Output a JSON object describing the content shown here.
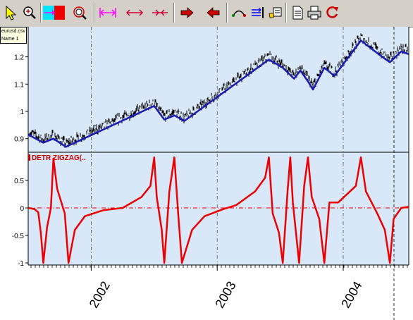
{
  "toolbar": {
    "buttons": [
      {
        "name": "pointer-icon"
      },
      {
        "name": "zoom-in-icon"
      },
      {
        "name": "color-select-icon"
      },
      {
        "name": "zoom-target-icon"
      },
      {
        "name": "expand-range-icon"
      },
      {
        "name": "stretch-horizontal-icon"
      },
      {
        "name": "compress-horizontal-icon"
      },
      {
        "name": "arrow-right-icon"
      },
      {
        "name": "arrow-left-icon"
      },
      {
        "name": "overlay-arc-icon"
      },
      {
        "name": "align-right-icon"
      },
      {
        "name": "hand-chart-icon"
      },
      {
        "name": "document-icon"
      },
      {
        "name": "print-icon"
      },
      {
        "name": "refresh-icon"
      }
    ]
  },
  "legend": {
    "line1": "eurusd.csv",
    "line2": "Name 1"
  },
  "indicator": {
    "label": "DETR ZIGZAG(.."
  },
  "colors": {
    "plot_bg": "#d8e8f8",
    "price": "#000000",
    "zigzag": "#1a1ab4",
    "indicator": "#ee0000",
    "indicator_dark": "#8b0000"
  },
  "chart_data": [
    {
      "type": "line",
      "series": [
        {
          "name": "",
          "values": [
            [
              2001.5,
              0.915
            ],
            [
              2001.62,
              0.885
            ],
            [
              2001.7,
              0.9
            ],
            [
              2001.8,
              0.87
            ],
            [
              2002.5,
              1.02
            ],
            [
              2002.58,
              0.97
            ],
            [
              2002.66,
              0.985
            ],
            [
              2002.74,
              0.965
            ],
            [
              2003.41,
              1.19
            ],
            [
              2003.52,
              1.16
            ],
            [
              2003.61,
              1.12
            ],
            [
              2003.66,
              1.15
            ],
            [
              2003.72,
              1.11
            ],
            [
              2003.76,
              1.08
            ],
            [
              2003.85,
              1.16
            ],
            [
              2003.93,
              1.13
            ],
            [
              2004.14,
              1.26
            ],
            [
              2004.28,
              1.21
            ],
            [
              2004.37,
              1.18
            ],
            [
              2004.46,
              1.22
            ],
            [
              2004.52,
              1.21
            ]
          ]
        }
      ],
      "ylim": [
        0.85,
        1.3
      ],
      "yticks": [
        "1.2",
        "1.1",
        "1",
        "0.9"
      ],
      "grid": true
    },
    {
      "type": "line",
      "series": [
        {
          "name": "DETR ZIGZAG(..",
          "values": [
            [
              2001.5,
              0.0
            ],
            [
              2001.55,
              -0.02
            ],
            [
              2001.58,
              -0.08
            ],
            [
              2001.6,
              -0.45
            ],
            [
              2001.62,
              -1.0
            ],
            [
              2001.65,
              -0.35
            ],
            [
              2001.68,
              0.0
            ],
            [
              2001.7,
              0.9
            ],
            [
              2001.73,
              0.35
            ],
            [
              2001.77,
              0.05
            ],
            [
              2001.79,
              -0.1
            ],
            [
              2001.82,
              -1.0
            ],
            [
              2001.87,
              -0.4
            ],
            [
              2001.95,
              -0.15
            ],
            [
              2002.1,
              -0.04
            ],
            [
              2002.25,
              0.0
            ],
            [
              2002.4,
              0.2
            ],
            [
              2002.47,
              0.4
            ],
            [
              2002.5,
              0.92
            ],
            [
              2002.52,
              0.2
            ],
            [
              2002.56,
              -0.4
            ],
            [
              2002.58,
              -1.0
            ],
            [
              2002.62,
              0.3
            ],
            [
              2002.66,
              0.92
            ],
            [
              2002.69,
              -0.1
            ],
            [
              2002.72,
              -1.0
            ],
            [
              2002.8,
              -0.4
            ],
            [
              2002.9,
              -0.15
            ],
            [
              2003.05,
              -0.02
            ],
            [
              2003.15,
              0.05
            ],
            [
              2003.3,
              0.3
            ],
            [
              2003.38,
              0.55
            ],
            [
              2003.41,
              0.92
            ],
            [
              2003.44,
              -0.1
            ],
            [
              2003.49,
              -0.45
            ],
            [
              2003.52,
              -1.0
            ],
            [
              2003.56,
              0.35
            ],
            [
              2003.58,
              0.92
            ],
            [
              2003.6,
              0.1
            ],
            [
              2003.65,
              -1.0
            ],
            [
              2003.69,
              0.4
            ],
            [
              2003.72,
              0.92
            ],
            [
              2003.75,
              0.2
            ],
            [
              2003.81,
              -0.2
            ],
            [
              2003.85,
              -1.0
            ],
            [
              2003.89,
              0.1
            ],
            [
              2003.96,
              0.1
            ],
            [
              2004.1,
              0.4
            ],
            [
              2004.14,
              0.92
            ],
            [
              2004.18,
              0.3
            ],
            [
              2004.27,
              -0.1
            ],
            [
              2004.33,
              -0.4
            ],
            [
              2004.37,
              -1.0
            ],
            [
              2004.4,
              -0.2
            ],
            [
              2004.46,
              0.0
            ],
            [
              2004.52,
              0.02
            ]
          ]
        }
      ],
      "ylim": [
        -1.0,
        1.0
      ],
      "yticks": [
        "0.5",
        "0",
        "-0.5",
        "-1"
      ],
      "xticks": [
        "2002",
        "2003",
        "2004"
      ],
      "grid": true
    }
  ]
}
